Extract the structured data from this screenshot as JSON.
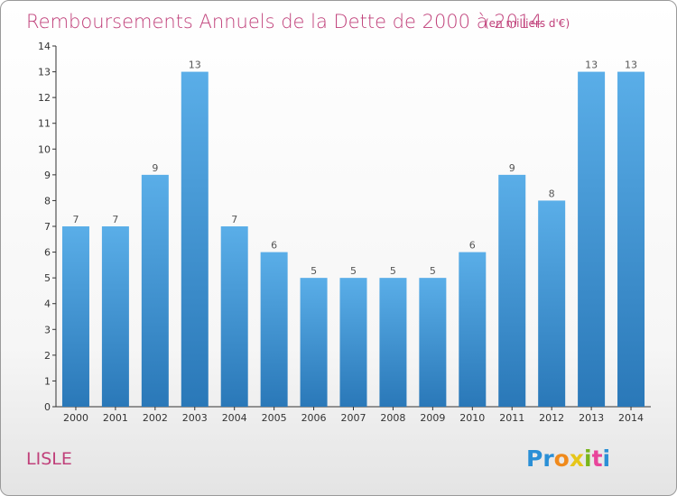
{
  "chart_data": {
    "type": "bar",
    "title": "Remboursements Annuels de la Dette de 2000 à 2014",
    "unit": "(en milliers d'€)",
    "categories": [
      "2000",
      "2001",
      "2002",
      "2003",
      "2004",
      "2005",
      "2006",
      "2007",
      "2008",
      "2009",
      "2010",
      "2011",
      "2012",
      "2013",
      "2014"
    ],
    "values": [
      7,
      7,
      9,
      13,
      7,
      6,
      5,
      5,
      5,
      5,
      6,
      9,
      8,
      13,
      13
    ],
    "ylim": [
      0,
      14
    ],
    "yticks": [
      "0",
      "1",
      "2",
      "3",
      "4",
      "5",
      "6",
      "7",
      "8",
      "9",
      "10",
      "11",
      "12",
      "13",
      "14"
    ],
    "grid": false,
    "bar_color_top": "#5aaee8",
    "bar_color_bottom": "#2a78b8"
  },
  "commune": "LISLE",
  "logo": {
    "letters": [
      "P",
      "r",
      "o",
      "x",
      "i",
      "t",
      "i"
    ],
    "colors": [
      "#2a8fd6",
      "#2a8fd6",
      "#f08a1c",
      "#e6c619",
      "#79b51c",
      "#e8459a",
      "#2a8fd6"
    ]
  }
}
